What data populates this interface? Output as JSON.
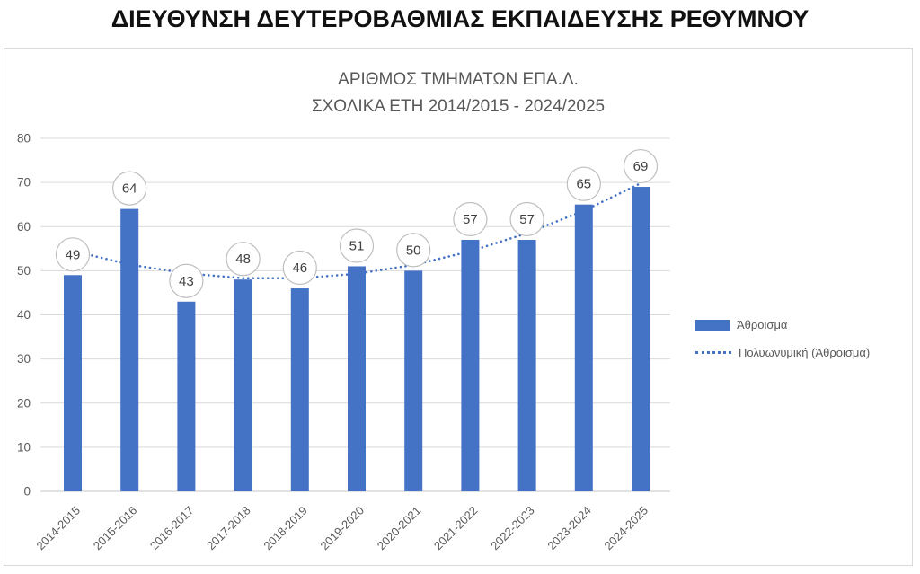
{
  "page": {
    "title": "ΔΙΕΥΘΥΝΣΗ ΔΕΥΤΕΡΟΒΑΘΜΙΑΣ ΕΚΠΑΙΔΕΥΣΗΣ ΡΕΘΥΜΝΟΥ"
  },
  "chart_data": {
    "type": "bar",
    "title": "ΑΡΙΘΜΟΣ ΤΜΗΜΑΤΩΝ ΕΠΑ.Λ.",
    "subtitle": "ΣΧΟΛΙΚΑ ΕΤΗ 2014/2015 - 2024/2025",
    "categories": [
      "2014-2015",
      "2015-2016",
      "2016-2017",
      "2017-2018",
      "2018-2019",
      "2019-2020",
      "2020-2021",
      "2021-2022",
      "2022-2023",
      "2023-2024",
      "2024-2025"
    ],
    "series": [
      {
        "name": "Άθροισμα",
        "type": "bar",
        "values": [
          49,
          64,
          43,
          48,
          46,
          51,
          50,
          57,
          57,
          65,
          69
        ],
        "color": "#4472C4"
      },
      {
        "name": "Πολυωνυμική (Άθροισμα)",
        "type": "polynomial-trendline",
        "line_style": "dotted",
        "values": [
          54.5,
          51.4,
          49.4,
          48.3,
          48.3,
          49.3,
          51.3,
          54.4,
          58.5,
          63.6,
          69.8
        ],
        "color": "#4472C4"
      }
    ],
    "ylim": [
      0,
      80
    ],
    "yticks": [
      0,
      10,
      20,
      30,
      40,
      50,
      60,
      70,
      80
    ],
    "grid": "horizontal",
    "legend_position": "right",
    "data_labels": {
      "shape": "circle",
      "fill": "#FFFFFF",
      "border_color": "#BFBFBF",
      "text_color": "#404040"
    },
    "axis_text_color": "#595959",
    "gridline_color": "#D9D9D9",
    "title_color": "#595959"
  }
}
